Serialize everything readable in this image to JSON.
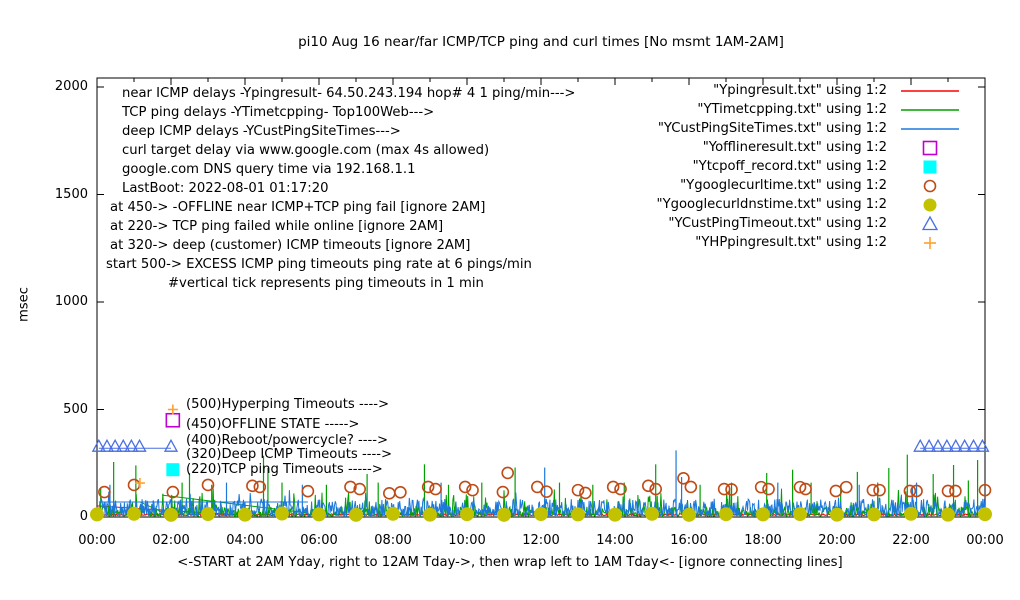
{
  "chart_data": {
    "type": "line",
    "title": "pi10 Aug 16  near/far ICMP/TCP ping and curl times [No msmt 1AM-2AM]",
    "xlabel": "<-START at 2AM Yday, right to 12AM Tday->, then wrap left to 1AM Tday<- [ignore connecting lines]",
    "ylabel": "msec",
    "xlim_hours": [
      0,
      24
    ],
    "ylim": [
      0,
      2000
    ],
    "grid": false,
    "legend_position": "top-right",
    "x_tick_labels": [
      "00:00",
      "02:00",
      "04:00",
      "06:00",
      "08:00",
      "10:00",
      "12:00",
      "14:00",
      "16:00",
      "18:00",
      "20:00",
      "22:00",
      "00:00"
    ],
    "y_ticks": [
      {
        "value": 0,
        "label": "0"
      },
      {
        "value": 500,
        "label": "500"
      },
      {
        "value": 1000,
        "label": "1000"
      },
      {
        "value": 1500,
        "label": "1500"
      },
      {
        "value": 2000,
        "label": "2000"
      }
    ],
    "info_lines": [
      {
        "text": "near ICMP delays -Ypingresult- 64.50.243.194 hop# 4 1 ping/min--->",
        "x": 122,
        "y": 86
      },
      {
        "text": "TCP ping delays -YTimetcpping- Top100Web--->",
        "x": 122,
        "y": 105
      },
      {
        "text": "deep ICMP delays -YCustPingSiteTimes--->",
        "x": 122,
        "y": 124
      },
      {
        "text": "curl target delay via www.google.com (max 4s allowed)",
        "x": 122,
        "y": 143
      },
      {
        "text": "google.com DNS query time via 192.168.1.1",
        "x": 122,
        "y": 162
      },
      {
        "text": "LastBoot: 2022-08-01 01:17:20",
        "x": 122,
        "y": 181
      },
      {
        "text": "at 450-> -OFFLINE near ICMP+TCP ping fail [ignore 2AM]",
        "x": 110,
        "y": 200
      },
      {
        "text": "at 220-> TCP ping failed while online [ignore 2AM]",
        "x": 110,
        "y": 219
      },
      {
        "text": "at 320-> deep (customer) ICMP timeouts [ignore 2AM]",
        "x": 110,
        "y": 238
      },
      {
        "text": "start 500-> EXCESS ICMP ping timeouts ping rate at 6 pings/min",
        "x": 106,
        "y": 257
      },
      {
        "text": "#vertical tick represents ping timeouts in 1 min",
        "x": 168,
        "y": 276
      }
    ],
    "level_labels": [
      {
        "text": "(500)Hyperping Timeouts ---->",
        "y": 397
      },
      {
        "text": "(450)OFFLINE STATE ----->",
        "y": 417
      },
      {
        "text": "(400)Reboot/powercycle? ---->",
        "y": 433
      },
      {
        "text": "(320)Deep ICMP Timeouts ---->",
        "y": 447
      },
      {
        "text": "(220)TCP ping Timeouts ----->",
        "y": 462
      }
    ],
    "legend": [
      {
        "label": "\"Ypingresult.txt\" using 1:2",
        "color": "#ff0000",
        "sample": "line"
      },
      {
        "label": "\"YTimetcpping.txt\" using 1:2",
        "color": "#00a000",
        "sample": "line"
      },
      {
        "label": "\"YCustPingSiteTimes.txt\" using 1:2",
        "color": "#1c78dc",
        "sample": "line"
      },
      {
        "label": "\"Yofflineresult.txt\" using 1:2",
        "color": "#c000d0",
        "sample": "open-square"
      },
      {
        "label": "\"Ytcpoff_record.txt\" using 1:2",
        "color": "#00ffff",
        "sample": "filled-square"
      },
      {
        "label": "\"Ygooglecurltime.txt\" using 1:2",
        "color": "#bf4b16",
        "sample": "open-circle"
      },
      {
        "label": "\"Ygooglecurldnstime.txt\" using 1:2",
        "color": "#c2c200",
        "sample": "filled-circle"
      },
      {
        "label": "\"YCustPingTimeout.txt\" using 1:2",
        "color": "#4a6fe3",
        "sample": "open-triangle"
      },
      {
        "label": "\"YHPpingresult.txt\" using 1:2",
        "color": "#ffa030",
        "sample": "plus"
      }
    ],
    "series": [
      {
        "name": "Ypingresult.txt",
        "desc": "near ICMP ping delay",
        "style": "line",
        "color": "#ff0000",
        "noise": {
          "base": 7,
          "jitter": 8,
          "spike_prob": 0,
          "spike_extra": 0
        },
        "spikes": [],
        "connectors": [
          [
            [
              0,
              52
            ],
            [
              3.6,
              12
            ]
          ]
        ]
      },
      {
        "name": "YTimetcpping.txt",
        "desc": "TCP ping delay Top100Web",
        "style": "line",
        "color": "#00a000",
        "noise": {
          "base": 3,
          "jitter": 45,
          "spike_prob": 0.12,
          "spike_extra": 100
        },
        "spikes": [
          [
            0.1,
            135
          ],
          [
            0.45,
            256
          ],
          [
            1.05,
            240
          ],
          [
            2.3,
            160
          ],
          [
            2.5,
            205
          ],
          [
            3.1,
            150
          ],
          [
            4.5,
            285
          ],
          [
            4.62,
            228
          ],
          [
            5.0,
            160
          ],
          [
            6.2,
            150
          ],
          [
            7.3,
            200
          ],
          [
            7.6,
            160
          ],
          [
            8.85,
            245
          ],
          [
            9.5,
            150
          ],
          [
            10.4,
            160
          ],
          [
            11.3,
            230
          ],
          [
            12.5,
            160
          ],
          [
            13.4,
            150
          ],
          [
            14.25,
            160
          ],
          [
            15.1,
            245
          ],
          [
            16.3,
            150
          ],
          [
            17.15,
            160
          ],
          [
            18.1,
            205
          ],
          [
            18.8,
            220
          ],
          [
            19.3,
            160
          ],
          [
            20.1,
            150
          ],
          [
            20.55,
            210
          ],
          [
            21.1,
            160
          ],
          [
            21.4,
            228
          ],
          [
            21.9,
            290
          ],
          [
            22.6,
            200
          ],
          [
            23.15,
            242
          ],
          [
            23.55,
            170
          ],
          [
            23.8,
            265
          ]
        ],
        "connectors": [
          [
            [
              1.76,
              102
            ],
            [
              5.68,
              19
            ]
          ],
          [
            [
              1.16,
              70
            ],
            [
              2.03,
              2
            ]
          ]
        ]
      },
      {
        "name": "YCustPingSiteTimes.txt",
        "desc": "deep ICMP delay",
        "style": "line",
        "color": "#1c78dc",
        "noise": {
          "base": 5,
          "jitter": 80,
          "spike_prob": 0.05,
          "spike_extra": 55
        },
        "spikes": [
          [
            0.35,
            150
          ],
          [
            3.5,
            160
          ],
          [
            5.55,
            150
          ],
          [
            9.3,
            160
          ],
          [
            12.1,
            230
          ],
          [
            15.65,
            310
          ],
          [
            15.8,
            186
          ],
          [
            18.4,
            160
          ],
          [
            20.6,
            150
          ],
          [
            22.15,
            160
          ]
        ],
        "connectors": [
          [
            [
              0.05,
              70
            ],
            [
              5.7,
              70
            ]
          ]
        ]
      },
      {
        "name": "Ygooglecurltime.txt",
        "desc": "curl delay www.google.com",
        "style": "points",
        "marker": "open-circle",
        "color": "#bf4b16",
        "points": [
          [
            0.2,
            116
          ],
          [
            1.0,
            149
          ],
          [
            2.05,
            116
          ],
          [
            3.0,
            149
          ],
          [
            4.2,
            145
          ],
          [
            4.4,
            140
          ],
          [
            5.7,
            120
          ],
          [
            6.85,
            140
          ],
          [
            7.1,
            130
          ],
          [
            7.9,
            110
          ],
          [
            8.2,
            115
          ],
          [
            8.95,
            140
          ],
          [
            9.15,
            130
          ],
          [
            9.95,
            140
          ],
          [
            10.15,
            125
          ],
          [
            10.97,
            116
          ],
          [
            11.1,
            205
          ],
          [
            11.9,
            140
          ],
          [
            12.15,
            118
          ],
          [
            13.0,
            125
          ],
          [
            13.2,
            112
          ],
          [
            13.95,
            140
          ],
          [
            14.15,
            130
          ],
          [
            14.9,
            145
          ],
          [
            15.1,
            130
          ],
          [
            15.85,
            180
          ],
          [
            16.05,
            140
          ],
          [
            16.95,
            130
          ],
          [
            17.15,
            128
          ],
          [
            17.95,
            139
          ],
          [
            18.15,
            130
          ],
          [
            19.0,
            139
          ],
          [
            19.15,
            130
          ],
          [
            19.97,
            121
          ],
          [
            20.25,
            139
          ],
          [
            20.97,
            125
          ],
          [
            21.15,
            125
          ],
          [
            21.97,
            121
          ],
          [
            22.15,
            121
          ],
          [
            23.0,
            121
          ],
          [
            23.2,
            121
          ],
          [
            24.0,
            125
          ]
        ]
      },
      {
        "name": "Ygooglecurldnstime.txt",
        "desc": "google.com DNS query time",
        "style": "points",
        "marker": "filled-circle",
        "color": "#c2c200",
        "points": [
          [
            0,
            12
          ],
          [
            1,
            15
          ],
          [
            2,
            10
          ],
          [
            3,
            14
          ],
          [
            4,
            11
          ],
          [
            5,
            16
          ],
          [
            6,
            12
          ],
          [
            7,
            10
          ],
          [
            8,
            15
          ],
          [
            9,
            11
          ],
          [
            10,
            13
          ],
          [
            11,
            10
          ],
          [
            12,
            14
          ],
          [
            13,
            12
          ],
          [
            14,
            11
          ],
          [
            15,
            15
          ],
          [
            16,
            10
          ],
          [
            17,
            13
          ],
          [
            18,
            12
          ],
          [
            19,
            14
          ],
          [
            20,
            11
          ],
          [
            21,
            12
          ],
          [
            22,
            15
          ],
          [
            23,
            11
          ],
          [
            24,
            13
          ]
        ]
      },
      {
        "name": "Yofflineresult.txt",
        "desc": "OFFLINE state marker",
        "style": "points",
        "marker": "open-square",
        "color": "#c000d0",
        "points": [
          [
            2.05,
            450
          ]
        ]
      },
      {
        "name": "Ytcpoff_record.txt",
        "desc": "TCP ping failed while online marker",
        "style": "points",
        "marker": "filled-square",
        "color": "#00ffff",
        "points": [
          [
            2.05,
            220
          ]
        ]
      },
      {
        "name": "YCustPingTimeout.txt",
        "desc": "deep ICMP timeouts",
        "style": "linespoints",
        "marker": "open-triangle",
        "color": "#4a6fe3",
        "points": [
          [
            0.05,
            320
          ],
          [
            0.27,
            320
          ],
          [
            0.49,
            320
          ],
          [
            0.71,
            320
          ],
          [
            0.93,
            320
          ],
          [
            1.15,
            320
          ],
          [
            2.0,
            320
          ],
          [
            22.25,
            320
          ],
          [
            22.49,
            320
          ],
          [
            22.73,
            320
          ],
          [
            22.97,
            320
          ],
          [
            23.21,
            320
          ],
          [
            23.45,
            320
          ],
          [
            23.69,
            320
          ],
          [
            23.93,
            320
          ]
        ],
        "lines": [
          [
            [
              0.05,
              320
            ],
            [
              2.0,
              320
            ]
          ],
          [
            [
              22.25,
              320
            ],
            [
              24,
              320
            ]
          ]
        ]
      },
      {
        "name": "YHPpingresult.txt",
        "desc": "Hyperping timeouts",
        "style": "points",
        "marker": "plus",
        "color": "#ffa030",
        "points": [
          [
            1.16,
            158
          ],
          [
            2.05,
            500
          ]
        ]
      }
    ]
  }
}
